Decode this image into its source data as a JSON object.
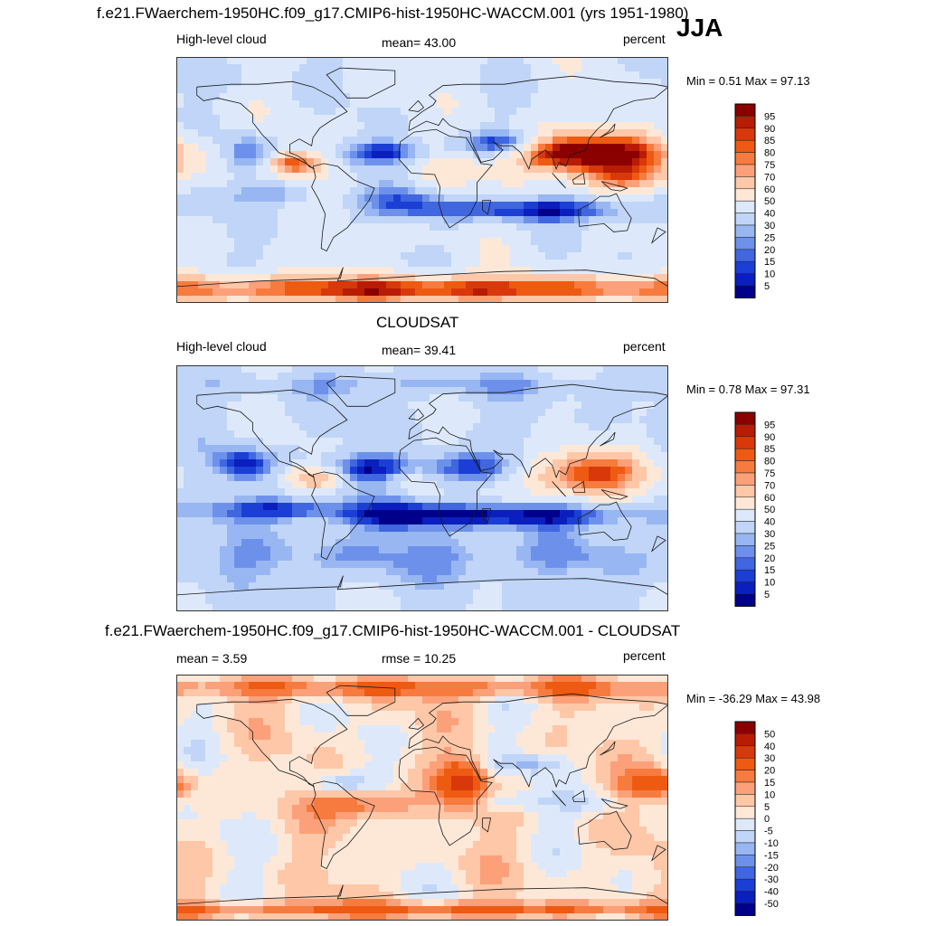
{
  "page": {
    "title": "f.e21.FWaerchem-1950HC.f09_g17.CMIP6-hist-1950HC-WACCM.001 (yrs 1951-1980)",
    "season": "JJA"
  },
  "chart_data": [
    {
      "type": "heatmap",
      "id": "model",
      "title": "f.e21.FWaerchem-1950HC.f09_g17.CMIP6-hist-1950HC-WACCM.001 (yrs 1951-1980)",
      "left_label": "High-level cloud",
      "center_label": "mean=  43.00",
      "right_label": "percent",
      "min_max": "Min =   0.51 Max =  97.13",
      "levels": [
        "95",
        "90",
        "85",
        "80",
        "75",
        "70",
        "60",
        "50",
        "40",
        "30",
        "25",
        "20",
        "15",
        "10",
        "5"
      ],
      "colors": [
        "#8b0000",
        "#b81c05",
        "#d9380a",
        "#ee5a12",
        "#f77b3e",
        "#fca07a",
        "#fdc7a8",
        "#fde8d8",
        "#dde9fb",
        "#c0d5f7",
        "#98b6f2",
        "#6d91eb",
        "#4066e0",
        "#1b3fd4",
        "#0a1fbe",
        "#00008b"
      ],
      "features": [
        {
          "lon": 130,
          "lat": 18,
          "v": 55,
          "sx": 42,
          "sy": 12
        },
        {
          "lon": 95,
          "lat": 22,
          "v": 25,
          "sx": 18,
          "sy": 8
        },
        {
          "lon": -95,
          "lat": 12,
          "v": 42,
          "sx": 14,
          "sy": 6
        },
        {
          "lon": 150,
          "lat": 0,
          "v": 18,
          "sx": 22,
          "sy": 6
        },
        {
          "lon": 20,
          "lat": 5,
          "v": 10,
          "sx": 15,
          "sy": 8
        },
        {
          "lon": -60,
          "lat": -3,
          "v": 6,
          "sx": 12,
          "sy": 8
        },
        {
          "lon": 60,
          "lat": 27,
          "v": -34,
          "sx": 26,
          "sy": 6
        },
        {
          "lon": -128,
          "lat": 20,
          "v": -28,
          "sx": 13,
          "sy": 10
        },
        {
          "lon": -30,
          "lat": 20,
          "v": -32,
          "sx": 22,
          "sy": 6
        },
        {
          "lon": 80,
          "lat": -22,
          "v": -36,
          "sx": 60,
          "sy": 6
        },
        {
          "lon": -110,
          "lat": -10,
          "v": -18,
          "sx": 30,
          "sy": 6
        },
        {
          "lon": -15,
          "lat": -15,
          "v": -22,
          "sx": 20,
          "sy": 8
        },
        {
          "lon": 0,
          "lat": -80,
          "v": 48,
          "sx": 180,
          "sy": 7
        },
        {
          "lon": -150,
          "lat": 75,
          "v": -6,
          "sx": 40,
          "sy": 8
        }
      ]
    },
    {
      "type": "heatmap",
      "id": "obs",
      "title": "CLOUDSAT",
      "left_label": "High-level cloud",
      "center_label": "mean=  39.41",
      "right_label": "percent",
      "min_max": "Min =   0.78 Max =  97.31",
      "levels": [
        "95",
        "90",
        "85",
        "80",
        "75",
        "70",
        "60",
        "50",
        "40",
        "30",
        "25",
        "20",
        "15",
        "10",
        "5"
      ],
      "colors": [
        "#8b0000",
        "#b81c05",
        "#d9380a",
        "#ee5a12",
        "#f77b3e",
        "#fca07a",
        "#fdc7a8",
        "#fde8d8",
        "#dde9fb",
        "#c0d5f7",
        "#98b6f2",
        "#6d91eb",
        "#4066e0",
        "#1b3fd4",
        "#0a1fbe",
        "#00008b"
      ],
      "features": [
        {
          "lon": 120,
          "lat": 10,
          "v": 50,
          "sx": 30,
          "sy": 12
        },
        {
          "lon": -80,
          "lat": 8,
          "v": 30,
          "sx": 14,
          "sy": 6
        },
        {
          "lon": -10,
          "lat": 5,
          "v": 12,
          "sx": 14,
          "sy": 6
        },
        {
          "lon": 30,
          "lat": 15,
          "v": -30,
          "sx": 25,
          "sy": 8
        },
        {
          "lon": -130,
          "lat": 18,
          "v": -32,
          "sx": 15,
          "sy": 9
        },
        {
          "lon": -40,
          "lat": 15,
          "v": -30,
          "sx": 20,
          "sy": 7
        },
        {
          "lon": 60,
          "lat": -20,
          "v": -38,
          "sx": 70,
          "sy": 6
        },
        {
          "lon": -100,
          "lat": -15,
          "v": -30,
          "sx": 35,
          "sy": 6
        },
        {
          "lon": -20,
          "lat": -20,
          "v": -20,
          "sx": 20,
          "sy": 8
        },
        {
          "lon": 0,
          "lat": 75,
          "v": -12,
          "sx": 120,
          "sy": 6
        },
        {
          "lon": 0,
          "lat": -50,
          "v": -14,
          "sx": 180,
          "sy": 12
        }
      ]
    },
    {
      "type": "heatmap",
      "id": "diff",
      "title": "f.e21.FWaerchem-1950HC.f09_g17.CMIP6-hist-1950HC-WACCM.001 - CLOUDSAT",
      "left_label": "mean =   3.59",
      "center_label": "rmse =  10.25",
      "right_label": "percent",
      "min_max": "Min = -36.29 Max =  43.98",
      "levels": [
        "50",
        "40",
        "30",
        "20",
        "15",
        "10",
        "5",
        "0",
        "-5",
        "-10",
        "-15",
        "-20",
        "-30",
        "-40",
        "-50"
      ],
      "colors": [
        "#8b0000",
        "#b81c05",
        "#d9380a",
        "#ee5a12",
        "#f77b3e",
        "#fca07a",
        "#fdc7a8",
        "#fde8d8",
        "#dde9fb",
        "#c0d5f7",
        "#98b6f2",
        "#6d91eb",
        "#4066e0",
        "#1b3fd4",
        "#0a1fbe",
        "#00008b"
      ],
      "features": [
        {
          "lon": 30,
          "lat": 10,
          "v": 30,
          "sx": 12,
          "sy": 12
        },
        {
          "lon": 170,
          "lat": 10,
          "v": 22,
          "sx": 15,
          "sy": 8
        },
        {
          "lon": -40,
          "lat": -5,
          "v": 20,
          "sx": 25,
          "sy": 8
        },
        {
          "lon": 0,
          "lat": 80,
          "v": 18,
          "sx": 180,
          "sy": 5
        },
        {
          "lon": 0,
          "lat": -82,
          "v": 20,
          "sx": 180,
          "sy": 4
        },
        {
          "lon": 80,
          "lat": 25,
          "v": -12,
          "sx": 18,
          "sy": 5
        },
        {
          "lon": 60,
          "lat": -3,
          "v": -10,
          "sx": 25,
          "sy": 5
        },
        {
          "lon": -60,
          "lat": 10,
          "v": -12,
          "sx": 15,
          "sy": 5
        },
        {
          "lon": 130,
          "lat": -5,
          "v": -8,
          "sx": 15,
          "sy": 5
        }
      ]
    }
  ]
}
